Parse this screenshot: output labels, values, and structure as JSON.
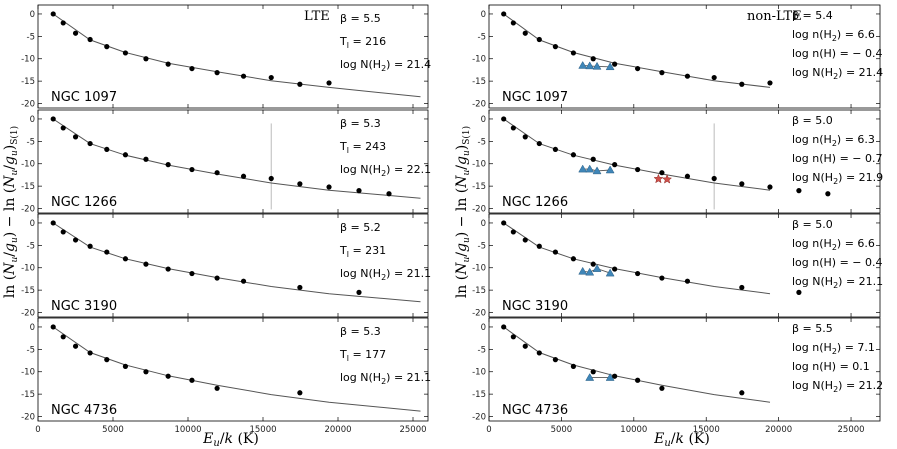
{
  "figure": {
    "xlabel": "E_u/k (K)",
    "ylabel": "ln (N_u/g_u) − ln (N_u/g_u)_S(1)"
  },
  "chart_data": [
    {
      "type": "scatter",
      "column": "LTE",
      "corner_label": "LTE",
      "galaxy": "NGC 1097",
      "params": [
        "β = 5.5",
        "T_l = 216",
        "log N(H2) = 21.4"
      ],
      "xlim": [
        0,
        26000
      ],
      "ylim": [
        -21,
        2
      ],
      "xticks": [
        0,
        5000,
        10000,
        15000,
        20000,
        25000
      ],
      "yticks": [
        0,
        -5,
        -10,
        -15,
        -20
      ],
      "circles": {
        "x": [
          1015,
          1682,
          2504,
          3474,
          4586,
          5829,
          7197,
          8677,
          10263,
          11940,
          13703,
          15549,
          17458,
          19402
        ],
        "y": [
          0,
          -2,
          -4.3,
          -5.7,
          -7.3,
          -8.7,
          -10,
          -11.2,
          -12.2,
          -13.1,
          -13.9,
          -14.2,
          -15.7,
          -15.4
        ]
      },
      "model": {
        "x": [
          1015,
          3474,
          5829,
          8677,
          11940,
          15549,
          19402,
          25500
        ],
        "y": [
          0,
          -5.8,
          -8.6,
          -11,
          -12.9,
          -14.9,
          -16.4,
          -18.5
        ]
      }
    },
    {
      "type": "scatter",
      "column": "LTE",
      "galaxy": "NGC 1266",
      "params": [
        "β = 5.3",
        "T_l = 243",
        "log N(H2) = 22.1"
      ],
      "xlim": [
        0,
        26000
      ],
      "ylim": [
        -21,
        2
      ],
      "xticks": [
        0,
        5000,
        10000,
        15000,
        20000,
        25000
      ],
      "yticks": [
        0,
        -5,
        -10,
        -15,
        -20
      ],
      "vline_x": 15549,
      "circles": {
        "x": [
          1015,
          1682,
          2504,
          3474,
          4586,
          5829,
          7197,
          8677,
          10263,
          11940,
          13703,
          15549,
          17458,
          19402,
          21400,
          23400
        ],
        "y": [
          0,
          -2,
          -4,
          -5.5,
          -6.8,
          -8,
          -9,
          -10.2,
          -11.3,
          -12,
          -12.8,
          -13.3,
          -14.5,
          -15.2,
          -16,
          -16.7
        ]
      },
      "model": {
        "x": [
          1015,
          3474,
          5829,
          8677,
          11940,
          15549,
          19402,
          25500
        ],
        "y": [
          0,
          -5.5,
          -8.1,
          -10.3,
          -12.3,
          -14.3,
          -15.9,
          -17.7
        ]
      }
    },
    {
      "type": "scatter",
      "column": "LTE",
      "galaxy": "NGC 3190",
      "params": [
        "β = 5.2",
        "T_l = 231",
        "log N(H2) = 21.1"
      ],
      "xlim": [
        0,
        26000
      ],
      "ylim": [
        -21,
        2
      ],
      "xticks": [
        0,
        5000,
        10000,
        15000,
        20000,
        25000
      ],
      "yticks": [
        0,
        -5,
        -10,
        -15,
        -20
      ],
      "circles": {
        "x": [
          1015,
          1682,
          2504,
          3474,
          4586,
          5829,
          7197,
          8677,
          10263,
          11940,
          13703,
          17458,
          21400
        ],
        "y": [
          0,
          -2,
          -3.8,
          -5.2,
          -6.5,
          -8,
          -9.2,
          -10.3,
          -11.3,
          -12.3,
          -13,
          -14.4,
          -15.5
        ]
      },
      "model": {
        "x": [
          1015,
          3474,
          5829,
          8677,
          11940,
          15549,
          19402,
          25500
        ],
        "y": [
          0,
          -5.4,
          -8,
          -10.2,
          -12.2,
          -14.2,
          -15.8,
          -17.6
        ]
      }
    },
    {
      "type": "scatter",
      "column": "LTE",
      "galaxy": "NGC 4736",
      "params": [
        "β = 5.3",
        "T_l = 177",
        "log N(H2) = 21.1"
      ],
      "xlim": [
        0,
        26000
      ],
      "ylim": [
        -21,
        2
      ],
      "xticks": [
        0,
        5000,
        10000,
        15000,
        20000,
        25000
      ],
      "yticks": [
        0,
        -5,
        -10,
        -15,
        -20
      ],
      "circles": {
        "x": [
          1015,
          1682,
          2504,
          3474,
          4586,
          5829,
          7197,
          8677,
          10263,
          11940,
          17458
        ],
        "y": [
          0,
          -2.2,
          -4.3,
          -5.8,
          -7.3,
          -8.8,
          -10,
          -11,
          -11.9,
          -13.7,
          -14.7
        ]
      },
      "model": {
        "x": [
          1015,
          3474,
          5829,
          8677,
          11940,
          15549,
          19402,
          25500
        ],
        "y": [
          0,
          -5.7,
          -8.5,
          -10.9,
          -13,
          -15.1,
          -16.8,
          -18.8
        ]
      }
    },
    {
      "type": "scatter",
      "column": "non-LTE",
      "corner_label": "non-LTE",
      "galaxy": "NGC 1097",
      "params": [
        "β = 5.4",
        "log n(H2) = 6.6",
        "log n(H) = − 0.4",
        "log N(H2) = 21.4"
      ],
      "xlim": [
        0,
        27000
      ],
      "ylim": [
        -21,
        2
      ],
      "xticks": [
        0,
        5000,
        10000,
        15000,
        20000,
        25000
      ],
      "yticks": [
        0,
        -5,
        -10,
        -15,
        -20
      ],
      "circles": {
        "x": [
          1015,
          1682,
          2504,
          3474,
          4586,
          5829,
          7197,
          8677,
          10263,
          11940,
          13703,
          15549,
          17458,
          19402
        ],
        "y": [
          0,
          -2,
          -4.3,
          -5.7,
          -7.3,
          -8.7,
          -10,
          -11.2,
          -12.2,
          -13.1,
          -13.9,
          -14.2,
          -15.7,
          -15.4
        ]
      },
      "triangles": {
        "x": [
          6471,
          6956,
          7461,
          8365
        ],
        "y": [
          -11.5,
          -11.6,
          -11.7,
          -11.8
        ]
      },
      "model": {
        "x": [
          1015,
          3474,
          5829,
          8677,
          11940,
          15549,
          19402
        ],
        "y": [
          0,
          -5.8,
          -8.6,
          -11,
          -12.9,
          -14.9,
          -16.4
        ]
      }
    },
    {
      "type": "scatter",
      "column": "non-LTE",
      "galaxy": "NGC 1266",
      "params": [
        "β = 5.0",
        "log n(H2) = 6.3",
        "log n(H) = − 0.7",
        "log N(H2) = 21.9"
      ],
      "xlim": [
        0,
        27000
      ],
      "ylim": [
        -21,
        2
      ],
      "xticks": [
        0,
        5000,
        10000,
        15000,
        20000,
        25000
      ],
      "yticks": [
        0,
        -5,
        -10,
        -15,
        -20
      ],
      "vline_x": 15549,
      "circles": {
        "x": [
          1015,
          1682,
          2504,
          3474,
          4586,
          5829,
          7197,
          8677,
          10263,
          11940,
          13703,
          15549,
          17458,
          19402,
          21400,
          23400
        ],
        "y": [
          0,
          -2,
          -4,
          -5.5,
          -6.8,
          -8,
          -9,
          -10.2,
          -11.3,
          -12,
          -12.8,
          -13.3,
          -14.5,
          -15.2,
          -16,
          -16.7
        ]
      },
      "triangles": {
        "x": [
          6471,
          6956,
          7461,
          8365
        ],
        "y": [
          -11.2,
          -11.2,
          -11.6,
          -11.4
        ]
      },
      "stars": {
        "x": [
          11700,
          12300
        ],
        "y": [
          -13.4,
          -13.5
        ]
      },
      "model": {
        "x": [
          1015,
          3474,
          5829,
          8677,
          11940,
          15549,
          19402
        ],
        "y": [
          0,
          -5.5,
          -8.1,
          -10.3,
          -12.3,
          -14.3,
          -15.9
        ]
      }
    },
    {
      "type": "scatter",
      "column": "non-LTE",
      "galaxy": "NGC 3190",
      "params": [
        "β = 5.0",
        "log n(H2) = 6.6",
        "log n(H) = − 0.4",
        "log N(H2) = 21.1"
      ],
      "xlim": [
        0,
        27000
      ],
      "ylim": [
        -21,
        2
      ],
      "xticks": [
        0,
        5000,
        10000,
        15000,
        20000,
        25000
      ],
      "yticks": [
        0,
        -5,
        -10,
        -15,
        -20
      ],
      "circles": {
        "x": [
          1015,
          1682,
          2504,
          3474,
          4586,
          5829,
          7197,
          8677,
          10263,
          11940,
          13703,
          17458,
          21400
        ],
        "y": [
          0,
          -2,
          -3.8,
          -5.2,
          -6.5,
          -8,
          -9.2,
          -10.3,
          -11.3,
          -12.3,
          -13,
          -14.4,
          -15.5
        ]
      },
      "triangles": {
        "x": [
          6471,
          6956,
          7461,
          8365
        ],
        "y": [
          -10.8,
          -11,
          -10.2,
          -11.2
        ]
      },
      "model": {
        "x": [
          1015,
          3474,
          5829,
          8677,
          11940,
          15549,
          19402
        ],
        "y": [
          0,
          -5.4,
          -8,
          -10.2,
          -12.2,
          -14.2,
          -15.8
        ]
      }
    },
    {
      "type": "scatter",
      "column": "non-LTE",
      "galaxy": "NGC 4736",
      "params": [
        "β = 5.5",
        "log n(H2) = 7.1",
        "log n(H) = 0.1",
        "log N(H2) = 21.2"
      ],
      "xlim": [
        0,
        27000
      ],
      "ylim": [
        -21,
        2
      ],
      "xticks": [
        0,
        5000,
        10000,
        15000,
        20000,
        25000
      ],
      "yticks": [
        0,
        -5,
        -10,
        -15,
        -20
      ],
      "circles": {
        "x": [
          1015,
          1682,
          2504,
          3474,
          4586,
          5829,
          7197,
          8677,
          10263,
          11940,
          17458
        ],
        "y": [
          0,
          -2.2,
          -4.3,
          -5.8,
          -7.3,
          -8.8,
          -10,
          -11,
          -11.9,
          -13.7,
          -14.7
        ]
      },
      "triangles": {
        "x": [
          6956,
          8365
        ],
        "y": [
          -11.3,
          -11.3
        ]
      },
      "model": {
        "x": [
          1015,
          3474,
          5829,
          8677,
          11940,
          15549,
          19402
        ],
        "y": [
          0,
          -5.7,
          -8.5,
          -10.9,
          -13,
          -15.1,
          -16.8
        ]
      }
    }
  ]
}
